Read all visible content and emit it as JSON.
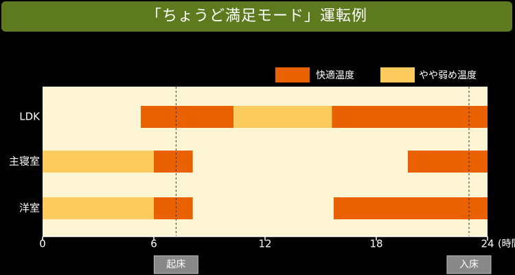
{
  "title": "「ちょうど満足モード」運転例",
  "legend": [
    {
      "label": "快適温度",
      "color": "#e96100"
    },
    {
      "label": "やや弱め温度",
      "color": "#fbcb5d"
    }
  ],
  "x_unit": "(時間)",
  "markers": [
    {
      "label": "起床",
      "hour": 7.2
    },
    {
      "label": "入床",
      "hour": 23.0
    }
  ],
  "chart_data": {
    "type": "bar",
    "title": "「ちょうど満足モード」運転例",
    "xlabel": "(時間)",
    "xlim": [
      0,
      24
    ],
    "xticks": [
      0,
      6,
      12,
      18,
      24
    ],
    "categories": [
      "LDK",
      "主寝室",
      "洋室"
    ],
    "series": [
      {
        "name": "快適温度",
        "color": "#e96100",
        "segments": [
          {
            "category": "LDK",
            "start": 5.3,
            "end": 10.3
          },
          {
            "category": "LDK",
            "start": 15.6,
            "end": 24
          },
          {
            "category": "主寝室",
            "start": 6.0,
            "end": 8.1
          },
          {
            "category": "主寝室",
            "start": 19.7,
            "end": 24
          },
          {
            "category": "洋室",
            "start": 6.0,
            "end": 8.1
          },
          {
            "category": "洋室",
            "start": 15.7,
            "end": 24
          }
        ]
      },
      {
        "name": "やや弱め温度",
        "color": "#fbcb5d",
        "segments": [
          {
            "category": "LDK",
            "start": 10.3,
            "end": 15.6
          },
          {
            "category": "主寝室",
            "start": 0,
            "end": 6.0
          },
          {
            "category": "洋室",
            "start": 0,
            "end": 6.0
          }
        ]
      }
    ],
    "plot_background": "#fdf5d4",
    "legend_position": "top-right"
  }
}
